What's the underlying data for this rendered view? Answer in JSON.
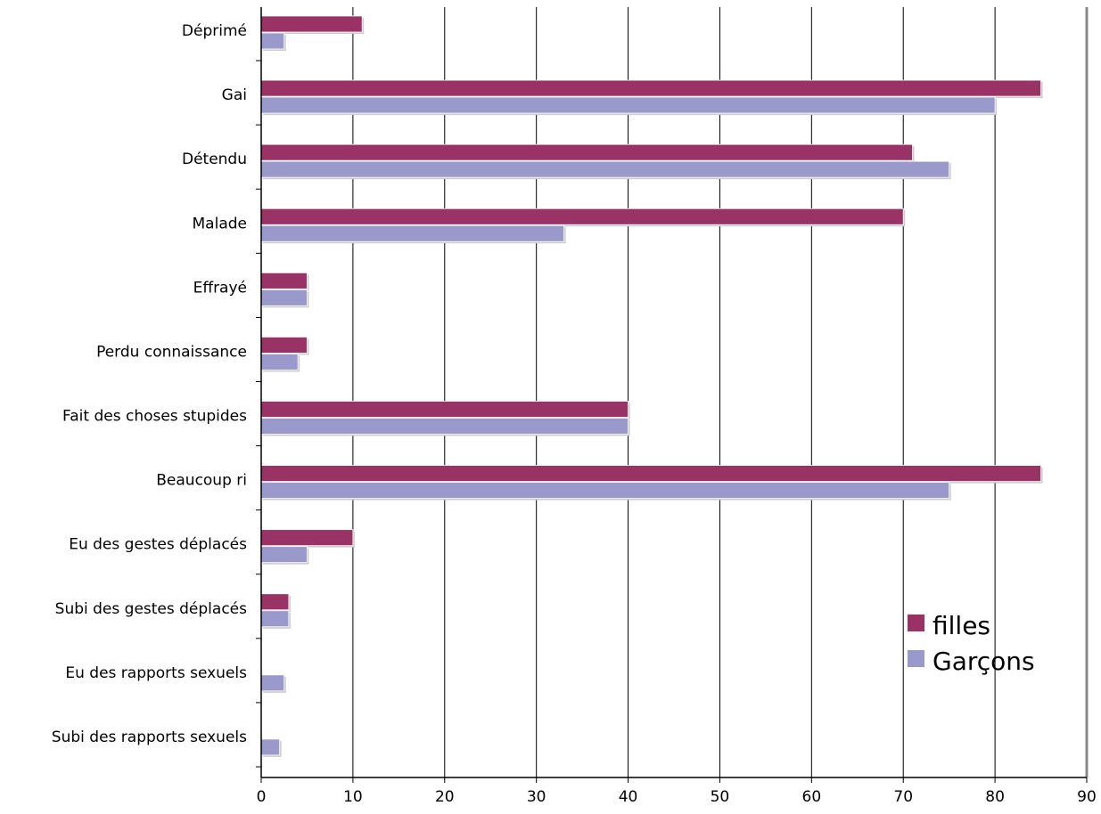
{
  "chart_data": {
    "type": "bar",
    "orientation": "horizontal",
    "categories": [
      "Déprimé",
      "Gai",
      "Détendu",
      "Malade",
      "Effrayé",
      "Perdu connaissance",
      "Fait des choses stupides",
      "Beaucoup ri",
      "Eu des gestes déplacés",
      "Subi des gestes déplacés",
      "Eu des rapports sexuels",
      "Subi des rapports sexuels"
    ],
    "series": [
      {
        "name": "filles",
        "color": "#993366",
        "values": [
          11,
          85,
          71,
          70,
          5,
          5,
          40,
          85,
          10,
          3,
          0,
          0
        ]
      },
      {
        "name": "Garçons",
        "color": "#9999cc",
        "values": [
          2.5,
          80,
          75,
          33,
          5,
          4,
          40,
          75,
          5,
          3,
          2.5,
          2
        ]
      }
    ],
    "xlim": [
      0,
      90
    ],
    "xticks": [
      "0",
      "10",
      "20",
      "30",
      "40",
      "50",
      "60",
      "70",
      "80",
      "90"
    ],
    "grid": "vertical",
    "legend": "bottom-right",
    "title": "",
    "xlabel": "",
    "ylabel": ""
  }
}
